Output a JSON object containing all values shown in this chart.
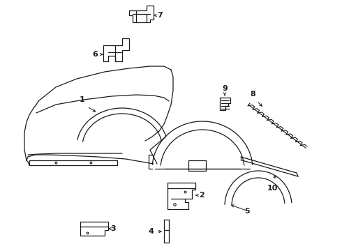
{
  "bg_color": "#ffffff",
  "line_color": "#1a1a1a",
  "fig_width": 4.9,
  "fig_height": 3.6,
  "dpi": 100,
  "label_fontsize": 8,
  "lw": 0.9
}
